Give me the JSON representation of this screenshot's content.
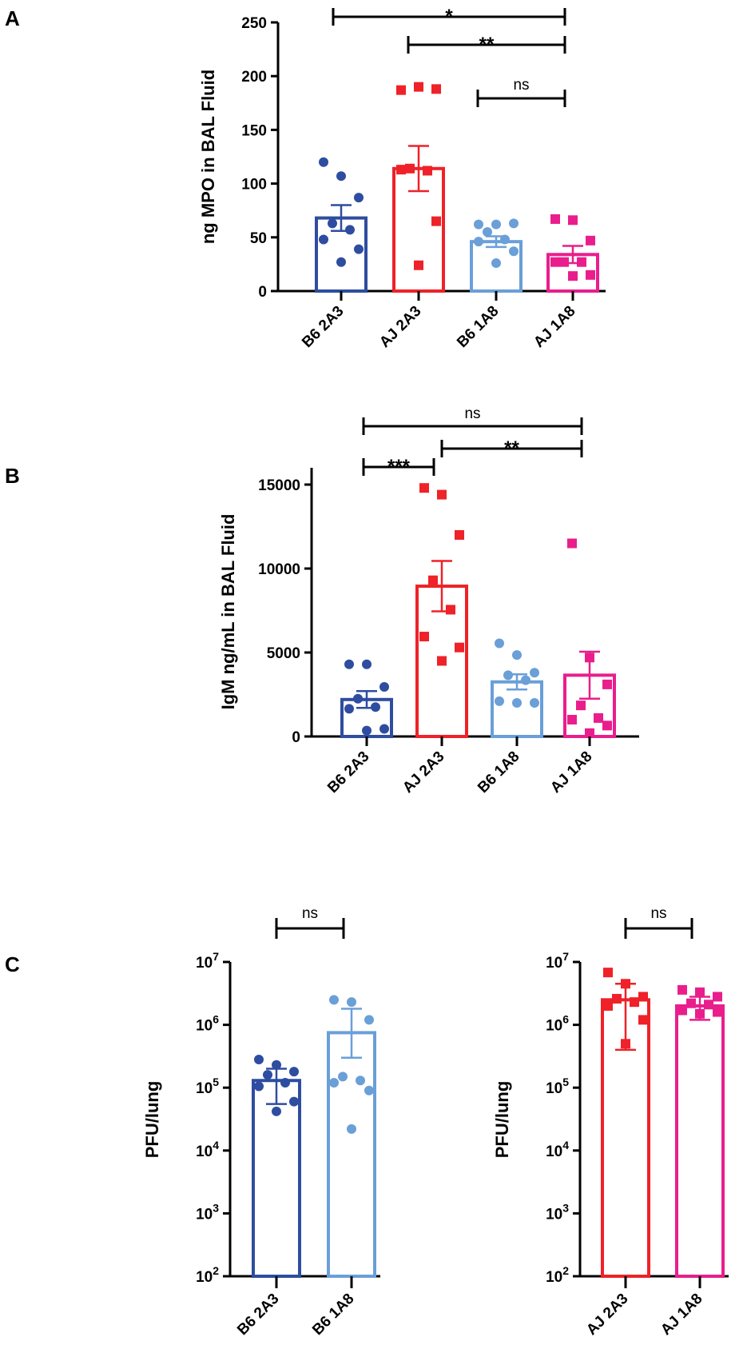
{
  "chart_data": [
    {
      "panel": "A",
      "type": "bar",
      "ylabel": "ng MPO in BAL Fluid",
      "ylim": [
        0,
        250
      ],
      "yticks": [
        0,
        50,
        100,
        150,
        200,
        250
      ],
      "ytick_labels": [
        "0",
        "50",
        "100",
        "150",
        "200",
        "250"
      ],
      "categories": [
        "B6 2A3",
        "AJ 2A3",
        "B6 1A8",
        "AJ 1A8"
      ],
      "colors": [
        "#2e4da0",
        "#ee2228",
        "#6a9fd8",
        "#e91e8c"
      ],
      "markers": [
        "circle",
        "square",
        "circle",
        "square"
      ],
      "values": [
        68,
        114,
        46,
        34
      ],
      "sem": [
        12,
        21,
        5,
        8
      ],
      "points": [
        [
          120,
          107,
          87,
          63,
          57,
          48,
          39,
          27
        ],
        [
          187,
          190,
          188,
          114,
          112,
          113,
          65,
          24
        ],
        [
          62,
          62,
          63,
          55,
          48,
          46,
          37,
          26
        ],
        [
          67,
          66,
          47,
          27,
          27,
          27,
          15,
          14
        ]
      ],
      "comparisons": [
        {
          "from": 0,
          "to": 3,
          "label": "*"
        },
        {
          "from": 1,
          "to": 3,
          "label": "**"
        },
        {
          "from": 2,
          "to": 3,
          "label": "ns"
        }
      ]
    },
    {
      "panel": "B",
      "type": "bar",
      "ylabel": "IgM ng/mL in BAL Fluid",
      "ylim": [
        0,
        16000
      ],
      "yticks": [
        0,
        5000,
        10000,
        15000
      ],
      "ytick_labels": [
        "0",
        "5000",
        "10000",
        "15000"
      ],
      "categories": [
        "B6 2A3",
        "AJ 2A3",
        "B6 1A8",
        "AJ 1A8"
      ],
      "colors": [
        "#2e4da0",
        "#ee2228",
        "#6a9fd8",
        "#e91e8c"
      ],
      "markers": [
        "circle",
        "square",
        "circle",
        "square"
      ],
      "values": [
        2200,
        8950,
        3250,
        3650
      ],
      "sem": [
        500,
        1500,
        450,
        1400
      ],
      "points": [
        [
          4300,
          4300,
          2950,
          2250,
          1750,
          1650,
          450,
          350
        ],
        [
          14800,
          14400,
          12000,
          9300,
          7550,
          5950,
          5300,
          4500
        ],
        [
          5550,
          4850,
          3800,
          3650,
          3350,
          2100,
          2000,
          2000
        ],
        [
          11500,
          4700,
          3100,
          1850,
          1100,
          1000,
          650,
          200
        ]
      ],
      "comparisons": [
        {
          "from": 0,
          "to": 3,
          "label": "ns"
        },
        {
          "from": 0,
          "to": 1,
          "label": "***"
        },
        {
          "from": 1,
          "to": 3,
          "label": "**"
        }
      ]
    },
    {
      "panel": "C",
      "type": "bar",
      "yscale": "log",
      "ylabel": "PFU/lung",
      "ylim": [
        100,
        10000000
      ],
      "ytick_labels": [
        "10",
        "10",
        "10",
        "10",
        "10",
        "10"
      ],
      "ytick_exponents": [
        "2",
        "3",
        "4",
        "5",
        "6",
        "7"
      ],
      "categories": [
        "B6 2A3",
        "B6 1A8"
      ],
      "colors": [
        "#2e4da0",
        "#6a9fd8"
      ],
      "markers": [
        "circle",
        "circle"
      ],
      "values": [
        130000,
        750000
      ],
      "err_low": [
        55000,
        300000
      ],
      "err_high": [
        200000,
        1800000
      ],
      "points": [
        [
          280000,
          230000,
          180000,
          160000,
          120000,
          105000,
          60000,
          42000
        ],
        [
          2500000,
          2300000,
          1200000,
          150000,
          130000,
          120000,
          90000,
          22000
        ]
      ],
      "comparisons": [
        {
          "from": 0,
          "to": 1,
          "label": "ns"
        }
      ]
    },
    {
      "panel": "C",
      "type": "bar",
      "yscale": "log",
      "ylabel": "PFU/lung",
      "ylim": [
        100,
        10000000
      ],
      "ytick_labels": [
        "10",
        "10",
        "10",
        "10",
        "10",
        "10"
      ],
      "ytick_exponents": [
        "2",
        "3",
        "4",
        "5",
        "6",
        "7"
      ],
      "categories": [
        "AJ 2A3",
        "AJ 1A8"
      ],
      "colors": [
        "#ee2228",
        "#e91e8c"
      ],
      "markers": [
        "square",
        "square"
      ],
      "values": [
        2500000,
        2000000
      ],
      "err_low": [
        400000,
        1200000
      ],
      "err_high": [
        4500000,
        2800000
      ],
      "points": [
        [
          6800000,
          4500000,
          2800000,
          2600000,
          2300000,
          2000000,
          1200000,
          500000
        ],
        [
          3600000,
          3300000,
          2800000,
          2200000,
          2100000,
          1700000,
          1600000,
          1500000
        ]
      ],
      "comparisons": [
        {
          "from": 0,
          "to": 1,
          "label": "ns"
        }
      ]
    }
  ]
}
